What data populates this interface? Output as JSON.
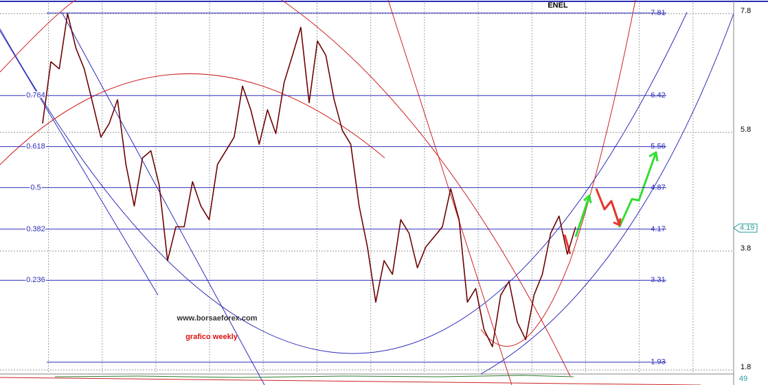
{
  "chart_data": {
    "type": "line",
    "title": "ENEL",
    "watermark": "www.borsaeforex.com",
    "subtitle": "grafico weekly",
    "series": [
      {
        "name": "ENEL",
        "color": "#6b0000",
        "values": [
          5.95,
          6.99,
          6.87,
          7.8,
          7.22,
          6.87,
          6.3,
          5.72,
          5.95,
          6.35,
          5.26,
          4.56,
          5.37,
          5.49,
          4.91,
          3.64,
          4.21,
          4.21,
          4.97,
          4.56,
          4.33,
          5.26,
          5.49,
          5.72,
          6.58,
          6.18,
          5.6,
          6.18,
          5.78,
          6.64,
          7.1,
          7.57,
          6.3,
          7.34,
          7.1,
          6.35,
          5.83,
          5.6,
          4.56,
          3.87,
          2.94,
          3.64,
          3.41,
          4.33,
          4.1,
          3.52,
          3.87,
          4.04,
          4.21,
          4.85,
          4.33,
          2.94,
          3.17,
          2.48,
          2.19,
          3.06,
          3.29,
          2.6,
          2.31,
          3.06,
          3.41,
          4.1,
          4.39,
          3.75,
          4.21
        ]
      }
    ],
    "fib_levels": [
      7.81,
      6.42,
      5.56,
      4.87,
      4.17,
      3.31,
      1.93
    ],
    "fib_ratios": [
      null,
      0.764,
      0.618,
      0.5,
      0.382,
      0.236,
      null
    ],
    "fib_color": "#2b2bb8",
    "last_value": 4.19,
    "indicator_value": 49,
    "ylim": [
      1.73,
      8.03
    ],
    "yticks": [
      7.8,
      5.8,
      3.8,
      1.8
    ],
    "grid": true
  }
}
